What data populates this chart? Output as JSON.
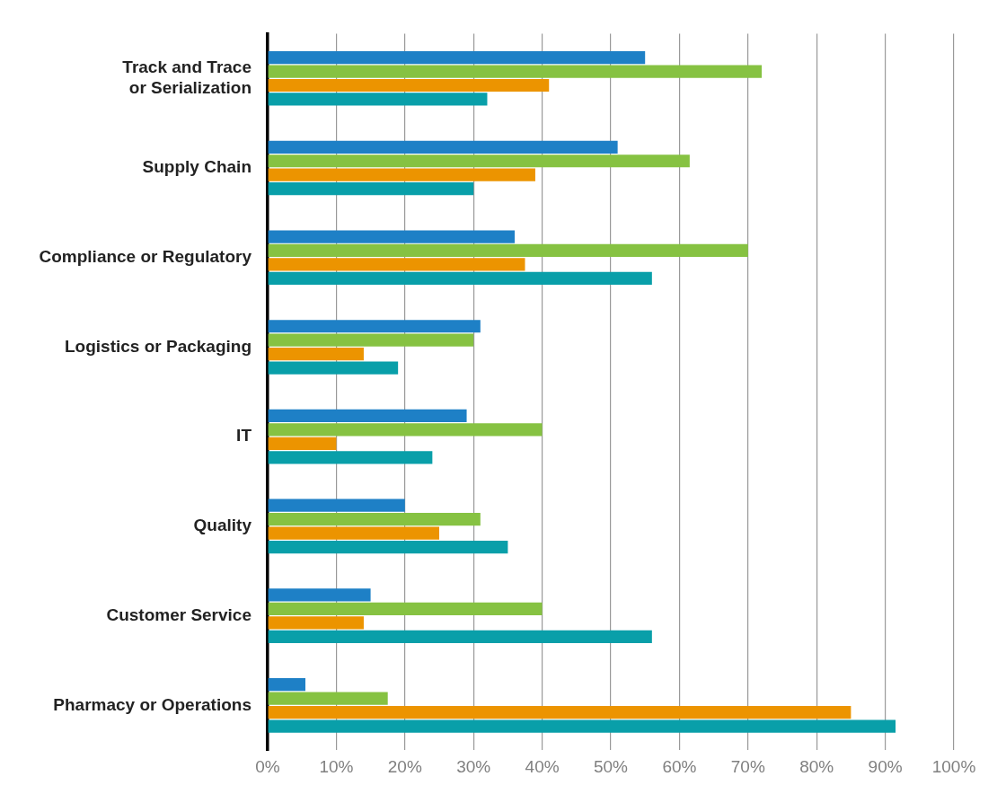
{
  "chart_data": {
    "type": "bar",
    "orientation": "horizontal",
    "categories": [
      "Track and Trace\nor Serialization",
      "Supply Chain",
      "Compliance or Regulatory",
      "Logistics or Packaging",
      "IT",
      "Quality",
      "Customer Service",
      "Pharmacy or Operations"
    ],
    "series": [
      {
        "color": "#1e80c6",
        "values": [
          55,
          51,
          36,
          31,
          29,
          20,
          15,
          5.5
        ]
      },
      {
        "color": "#86c242",
        "values": [
          72,
          61.5,
          70,
          30,
          40,
          31,
          40,
          17.5
        ]
      },
      {
        "color": "#ec9400",
        "values": [
          41,
          39,
          37.5,
          14,
          10,
          25,
          14,
          85
        ]
      },
      {
        "color": "#099fa9",
        "values": [
          32,
          30,
          56,
          19,
          24,
          35,
          56,
          91.5
        ]
      }
    ],
    "xlim": [
      0,
      100
    ],
    "xticks": [
      {
        "value": 0,
        "label": "0%"
      },
      {
        "value": 10,
        "label": "10%"
      },
      {
        "value": 20,
        "label": "20%"
      },
      {
        "value": 30,
        "label": "30%"
      },
      {
        "value": 40,
        "label": "40%"
      },
      {
        "value": 50,
        "label": "50%"
      },
      {
        "value": 60,
        "label": "60%"
      },
      {
        "value": 70,
        "label": "70%"
      },
      {
        "value": 80,
        "label": "80%"
      },
      {
        "value": 90,
        "label": "90%"
      },
      {
        "value": 100,
        "label": "100%"
      }
    ],
    "grid": "x",
    "legend": false
  }
}
